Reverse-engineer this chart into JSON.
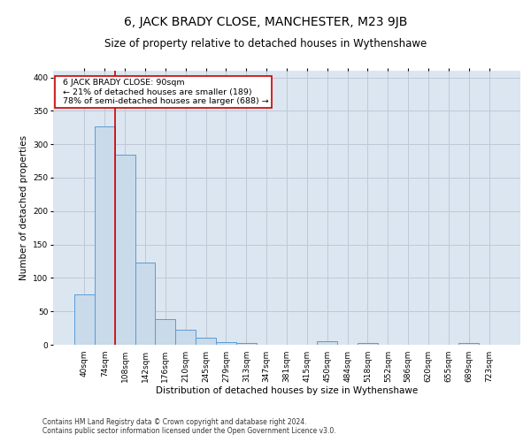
{
  "title": "6, JACK BRADY CLOSE, MANCHESTER, M23 9JB",
  "subtitle": "Size of property relative to detached houses in Wythenshawe",
  "xlabel": "Distribution of detached houses by size in Wythenshawe",
  "ylabel": "Number of detached properties",
  "footer_line1": "Contains HM Land Registry data © Crown copyright and database right 2024.",
  "footer_line2": "Contains public sector information licensed under the Open Government Licence v3.0.",
  "categories": [
    "40sqm",
    "74sqm",
    "108sqm",
    "142sqm",
    "176sqm",
    "210sqm",
    "245sqm",
    "279sqm",
    "313sqm",
    "347sqm",
    "381sqm",
    "415sqm",
    "450sqm",
    "484sqm",
    "518sqm",
    "552sqm",
    "586sqm",
    "620sqm",
    "655sqm",
    "689sqm",
    "723sqm"
  ],
  "values": [
    75,
    327,
    284,
    123,
    38,
    23,
    11,
    4,
    3,
    0,
    0,
    0,
    5,
    0,
    3,
    0,
    0,
    0,
    0,
    3,
    0
  ],
  "bar_color": "#c9daea",
  "bar_edge_color": "#5b9bd5",
  "property_label": "6 JACK BRADY CLOSE: 90sqm",
  "pct_smaller": 21,
  "count_smaller": 189,
  "pct_larger_semi": 78,
  "count_larger_semi": 688,
  "vline_color": "#cc0000",
  "annotation_box_color": "#ffffff",
  "annotation_box_edge": "#cc0000",
  "ylim": [
    0,
    410
  ],
  "yticks": [
    0,
    50,
    100,
    150,
    200,
    250,
    300,
    350,
    400
  ],
  "grid_color": "#c0c8d8",
  "bg_color": "#dce6f0",
  "title_fontsize": 10,
  "subtitle_fontsize": 8.5,
  "axis_label_fontsize": 7.5,
  "tick_fontsize": 6.5,
  "annotation_fontsize": 6.8,
  "footer_fontsize": 5.5
}
